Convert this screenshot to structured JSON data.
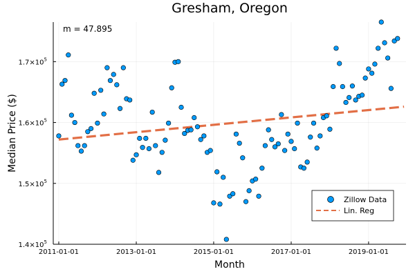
{
  "chart_data": {
    "type": "scatter",
    "title": "Gresham, Oregon",
    "xlabel": "Month",
    "ylabel": "Median Price ($)",
    "annotation": "m = 47.895",
    "xlim": [
      "2010-11-10",
      "2019-12-20"
    ],
    "ylim": [
      140000,
      176500
    ],
    "x_ticks": [
      "2011-01-01",
      "2013-01-01",
      "2015-01-01",
      "2017-01-01",
      "2019-01-01"
    ],
    "y_ticks": [
      {
        "value": 140000,
        "base": "1.4×10",
        "exp": "5"
      },
      {
        "value": 150000,
        "base": "1.5×10",
        "exp": "5"
      },
      {
        "value": 160000,
        "base": "1.6×10",
        "exp": "5"
      },
      {
        "value": 170000,
        "base": "1.7×10",
        "exp": "5"
      }
    ],
    "grid": true,
    "legend_position": "bottom-right",
    "series": [
      {
        "name": "Zillow Data",
        "kind": "scatter",
        "color": "#009AFA",
        "start": "2011-01-01",
        "step": "1 month",
        "values": [
          157800,
          166300,
          166900,
          171100,
          161200,
          160000,
          156200,
          155300,
          156200,
          158500,
          159000,
          164800,
          159900,
          165300,
          161400,
          169000,
          166900,
          167900,
          166200,
          162300,
          169000,
          163900,
          163700,
          153800,
          154700,
          157400,
          155900,
          157400,
          155700,
          161700,
          156200,
          151800,
          155100,
          157100,
          159900,
          165700,
          169900,
          170000,
          162500,
          158200,
          158700,
          158800,
          160800,
          159300,
          157200,
          157800,
          155100,
          155400,
          146800,
          151900,
          146600,
          151000,
          140800,
          147900,
          148300,
          158100,
          156600,
          154200,
          147000,
          148800,
          150400,
          150700,
          147900,
          152500,
          156200,
          158800,
          157200,
          156000,
          156500,
          161300,
          155400,
          158100,
          156900,
          155700,
          159900,
          152700,
          152500,
          153500,
          157600,
          159900,
          155800,
          157800,
          160800,
          161100,
          158900,
          165900,
          172200,
          169700,
          165900,
          163300,
          164100,
          166000,
          163700,
          164300,
          164500,
          167300,
          168800,
          168100,
          169600,
          172200,
          176500,
          173100,
          170600,
          165600,
          173400,
          173800
        ]
      },
      {
        "name": "Lin. Reg",
        "kind": "line",
        "color": "#E26F46",
        "dash": true,
        "start": "2011-01-01",
        "end": "2019-12-01",
        "y_start": 157200,
        "y_end": 162600
      }
    ]
  }
}
